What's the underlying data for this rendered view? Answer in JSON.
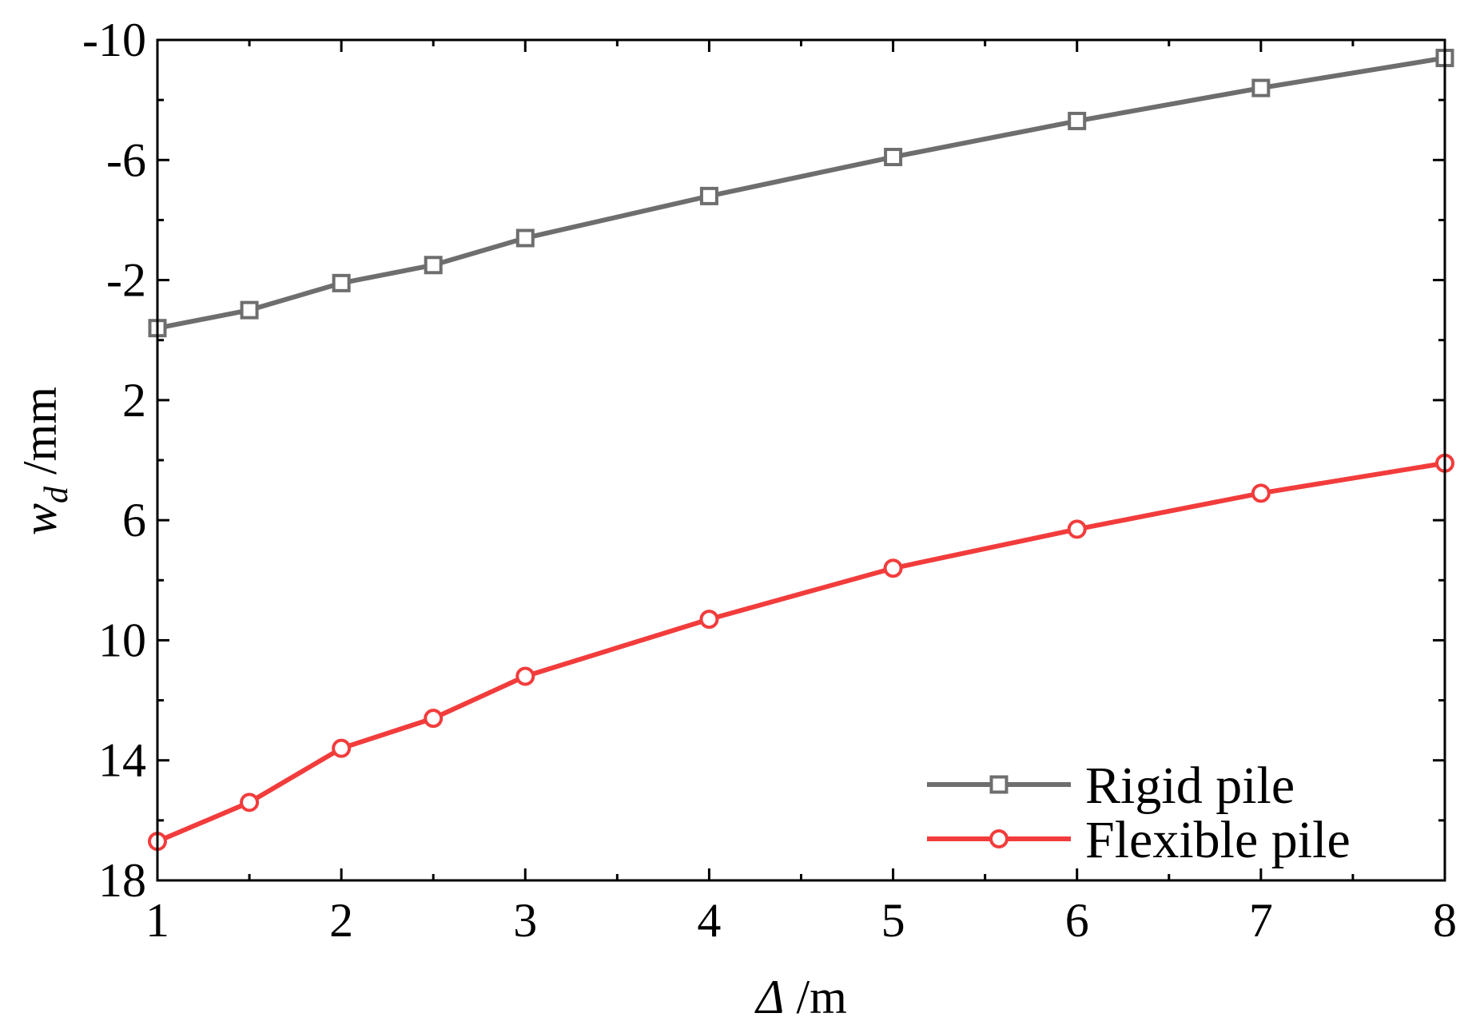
{
  "chart_data": {
    "type": "line",
    "title": "",
    "xlabel_symbol": "Δ",
    "xlabel_unit": " /m",
    "ylabel_symbol": "w",
    "ylabel_subscript": "d",
    "ylabel_unit": " /mm",
    "xlim": [
      1,
      8
    ],
    "ylim": [
      18,
      -10
    ],
    "y_axis_inverted": true,
    "x_ticks": [
      "1",
      "2",
      "3",
      "4",
      "5",
      "6",
      "7",
      "8"
    ],
    "y_ticks": [
      "-10",
      "-6",
      "-2",
      "2",
      "6",
      "10",
      "14",
      "18"
    ],
    "y_tick_values": [
      -10,
      -6,
      -2,
      2,
      6,
      10,
      14,
      18
    ],
    "grid": false,
    "legend_position": "bottom-right",
    "series": [
      {
        "name": "Rigid pile",
        "color": "#6e6e6e",
        "marker": "square",
        "x": [
          1,
          1.5,
          2,
          2.5,
          3,
          4,
          5,
          6,
          7,
          8
        ],
        "y": [
          -0.4,
          -1.0,
          -1.9,
          -2.5,
          -3.4,
          -4.8,
          -6.1,
          -7.3,
          -8.4,
          -9.4
        ]
      },
      {
        "name": "Flexible pile",
        "color": "#f23c3c",
        "marker": "circle",
        "x": [
          1,
          1.5,
          2,
          2.5,
          3,
          4,
          5,
          6,
          7,
          8
        ],
        "y": [
          16.7,
          15.4,
          13.6,
          12.6,
          11.2,
          9.3,
          7.6,
          6.3,
          5.1,
          4.1
        ]
      }
    ]
  }
}
